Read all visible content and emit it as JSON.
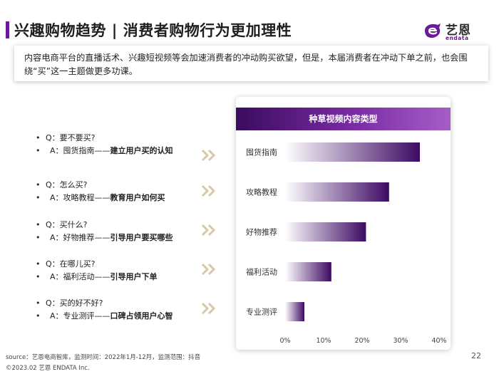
{
  "header": {
    "title": "兴趣购物趋势 | 消费者购物行为更加理性",
    "logo_cn": "艺恩",
    "logo_en": "endata",
    "accent_color": "#6a1b9a"
  },
  "intro": {
    "text": "内容电商平台的直播话术、兴趣短视频等会加速消费者的冲动购买欲望，但是，本届消费者在冲动下单之前，也会围绕“买”这一主题做更多功课。"
  },
  "qa": [
    {
      "q": "Q：要不要买?",
      "a_prefix": "A：囤货指南——",
      "a_bold": "建立用户买的认知"
    },
    {
      "q": "Q：怎么买?",
      "a_prefix": "A：攻略教程——",
      "a_bold": "教育用户如何买"
    },
    {
      "q": "Q：买什么?",
      "a_prefix": "A：好物推荐——",
      "a_bold": "引导用户要买哪些"
    },
    {
      "q": "Q：在哪儿买?",
      "a_prefix": "A：福利活动——",
      "a_bold": "引导用户下单"
    },
    {
      "q": "Q：买的好不好?",
      "a_prefix": "A：专业测评——",
      "a_bold": "口碑占领用户心智"
    }
  ],
  "chart_data": {
    "type": "bar",
    "orientation": "horizontal",
    "title": "种草视频内容类型",
    "categories": [
      "囤货指南",
      "攻略教程",
      "好物推荐",
      "福利活动",
      "专业测评"
    ],
    "values": [
      35,
      27,
      21,
      12,
      5
    ],
    "xlim": [
      0,
      40
    ],
    "x_ticks": [
      "0%",
      "10%",
      "20%",
      "30%",
      "40%"
    ],
    "grid": false,
    "bar_color_start": "#ffffff",
    "bar_color_end": "#3d0a63"
  },
  "footer": {
    "source": "source：艺恩电商智库，监测时间：2022年1月-12月，监测范围：抖音",
    "copyright": "©2023.02 艺恩 ENDATA Inc.",
    "page": "22"
  }
}
